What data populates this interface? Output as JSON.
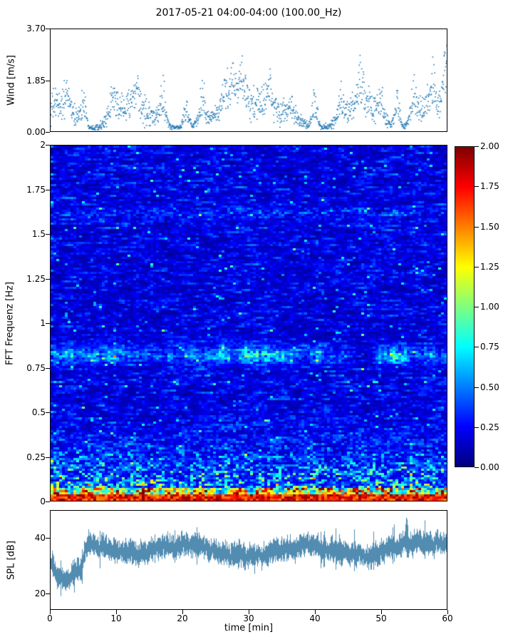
{
  "title": "2017-05-21 04:00-04:00 (100.00_Hz)",
  "xlabel": "time [min]",
  "xlim": [
    0,
    60
  ],
  "xticks": [
    {
      "v": 0,
      "label": "0"
    },
    {
      "v": 10,
      "label": "10"
    },
    {
      "v": 20,
      "label": "20"
    },
    {
      "v": 30,
      "label": "30"
    },
    {
      "v": 40,
      "label": "40"
    },
    {
      "v": 50,
      "label": "50"
    },
    {
      "v": 60,
      "label": "60"
    }
  ],
  "chart_data": [
    {
      "id": "wind",
      "type": "scatter",
      "ylabel": "Wind [m/s]",
      "ylim": [
        0,
        3.7
      ],
      "yticks": [
        {
          "v": 0,
          "label": "0.00"
        },
        {
          "v": 1.85,
          "label": "1.85"
        },
        {
          "v": 3.7,
          "label": "3.70"
        }
      ],
      "marker_color": "#1f77b4",
      "n_points": 1450,
      "typical_range": [
        0.1,
        1.8
      ],
      "gusts": [
        {
          "t": 2.5,
          "a": 0.9
        },
        {
          "t": 5,
          "a": 1.4
        },
        {
          "t": 9.5,
          "a": 1.1
        },
        {
          "t": 13,
          "a": 0.9
        },
        {
          "t": 17,
          "a": 1.8
        },
        {
          "t": 20.5,
          "a": 1.1
        },
        {
          "t": 23,
          "a": 1.6
        },
        {
          "t": 26.5,
          "a": 1.9
        },
        {
          "t": 27.7,
          "a": 2.9
        },
        {
          "t": 29,
          "a": 2.3
        },
        {
          "t": 33,
          "a": 1.4
        },
        {
          "t": 36.5,
          "a": 0.9
        },
        {
          "t": 40,
          "a": 1.5
        },
        {
          "t": 44,
          "a": 1.2
        },
        {
          "t": 47,
          "a": 1.8
        },
        {
          "t": 50,
          "a": 1.0
        },
        {
          "t": 52.5,
          "a": 1.4
        },
        {
          "t": 55,
          "a": 1.6
        },
        {
          "t": 58,
          "a": 1.3
        },
        {
          "t": 59.8,
          "a": 3.0
        }
      ]
    },
    {
      "id": "spectrogram",
      "type": "heatmap",
      "ylabel": "FFT Frequenz [Hz]",
      "ylim": [
        0,
        2
      ],
      "yticks": [
        {
          "v": 2,
          "label": "2"
        },
        {
          "v": 1.75,
          "label": "1.75"
        },
        {
          "v": 1.5,
          "label": "1.5"
        },
        {
          "v": 1.25,
          "label": "1.25"
        },
        {
          "v": 1,
          "label": "1"
        },
        {
          "v": 0.75,
          "label": "0.75"
        },
        {
          "v": 0.5,
          "label": "0.5"
        },
        {
          "v": 0.25,
          "label": "0.25"
        },
        {
          "v": 0,
          "label": "0"
        }
      ],
      "colormap": "jet",
      "value_range": [
        0,
        2
      ],
      "colorbar_ticks": [
        {
          "v": 2,
          "label": "2.00"
        },
        {
          "v": 1.75,
          "label": "1.75"
        },
        {
          "v": 1.5,
          "label": "1.50"
        },
        {
          "v": 1.25,
          "label": "1.25"
        },
        {
          "v": 1,
          "label": "1.00"
        },
        {
          "v": 0.75,
          "label": "0.75"
        },
        {
          "v": 0.5,
          "label": "0.50"
        },
        {
          "v": 0.25,
          "label": "0.25"
        },
        {
          "v": 0,
          "label": "0.00"
        }
      ],
      "background_level": 0.15,
      "features": [
        {
          "name": "broadband-noise-floor",
          "level": 0.15,
          "description": "dark blue speckled background with horizontal streaks"
        },
        {
          "name": "microseism-band",
          "freq_center": 0.82,
          "freq_width": 0.05,
          "level": 1.2,
          "description": "intermittent cyan-green-yellow wavy band"
        },
        {
          "name": "low-frequency-energy",
          "freq_below": 0.6,
          "level": 0.8,
          "description": "elevated speckle increasing toward 0 Hz"
        },
        {
          "name": "dc-band",
          "freq_below": 0.05,
          "level": 1.9,
          "description": "saturated red-orange band along bottom edge"
        },
        {
          "name": "faint-band",
          "freq_center": 1.62,
          "freq_width": 0.04,
          "level": 0.35,
          "description": "very faint light streaks"
        }
      ]
    },
    {
      "id": "spl",
      "type": "line",
      "ylabel": "SPL [dB]",
      "ylim": [
        14,
        50
      ],
      "yticks": [
        {
          "v": 20,
          "label": "20"
        },
        {
          "v": 40,
          "label": "40"
        }
      ],
      "line_color": "#3f7fa8",
      "quiet_level_db": 26,
      "active_level_db": 36,
      "transition_min": 5,
      "fluctuation_db": 5,
      "peak": {
        "t": 54,
        "value": 47
      }
    }
  ]
}
